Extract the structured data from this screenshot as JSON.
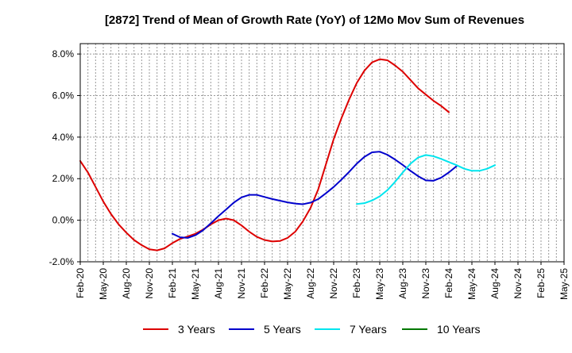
{
  "chart_data": {
    "type": "line",
    "title": "[2872]  Trend of Mean of Growth Rate (YoY) of 12Mo Mov Sum of Revenues",
    "xlabel": "",
    "ylabel": "",
    "ylim": [
      -2.0,
      8.5
    ],
    "y_ticks": [
      -2.0,
      0.0,
      2.0,
      4.0,
      6.0,
      8.0
    ],
    "y_tick_labels": [
      "-2.0%",
      "0.0%",
      "2.0%",
      "4.0%",
      "6.0%",
      "8.0%"
    ],
    "x_tick_labels": [
      "Feb-20",
      "May-20",
      "Aug-20",
      "Nov-20",
      "Feb-21",
      "May-21",
      "Aug-21",
      "Nov-21",
      "Feb-22",
      "May-22",
      "Aug-22",
      "Nov-22",
      "Feb-23",
      "May-23",
      "Aug-23",
      "Nov-23",
      "Feb-24",
      "May-24",
      "Aug-24",
      "Nov-24",
      "Feb-25",
      "May-25"
    ],
    "grid": true,
    "legend_position": "bottom",
    "series": [
      {
        "name": "3 Years",
        "color": "#dd0000",
        "start_month_index": 0,
        "values": [
          2.85,
          2.3,
          1.6,
          0.9,
          0.3,
          -0.2,
          -0.6,
          -0.95,
          -1.2,
          -1.4,
          -1.45,
          -1.35,
          -1.1,
          -0.9,
          -0.78,
          -0.65,
          -0.45,
          -0.2,
          0.0,
          0.08,
          0.0,
          -0.25,
          -0.55,
          -0.8,
          -0.95,
          -1.02,
          -1.0,
          -0.85,
          -0.55,
          -0.05,
          0.6,
          1.5,
          2.7,
          3.9,
          4.9,
          5.8,
          6.6,
          7.2,
          7.6,
          7.75,
          7.7,
          7.45,
          7.15,
          6.75,
          6.35,
          6.05,
          5.75,
          5.5,
          5.2
        ]
      },
      {
        "name": "5 Years",
        "color": "#0000cc",
        "start_month_index": 12,
        "values": [
          -0.65,
          -0.82,
          -0.85,
          -0.72,
          -0.48,
          -0.15,
          0.2,
          0.52,
          0.85,
          1.1,
          1.22,
          1.22,
          1.12,
          1.02,
          0.94,
          0.86,
          0.8,
          0.77,
          0.85,
          1.02,
          1.3,
          1.6,
          1.95,
          2.32,
          2.72,
          3.05,
          3.27,
          3.3,
          3.15,
          2.92,
          2.66,
          2.38,
          2.12,
          1.92,
          1.9,
          2.05,
          2.3,
          2.6
        ]
      },
      {
        "name": "7 Years",
        "color": "#00e5ee",
        "start_month_index": 36,
        "values": [
          0.78,
          0.82,
          0.95,
          1.15,
          1.45,
          1.85,
          2.3,
          2.72,
          3.02,
          3.14,
          3.08,
          2.95,
          2.8,
          2.65,
          2.48,
          2.38,
          2.38,
          2.48,
          2.65
        ]
      },
      {
        "name": "10 Years",
        "color": "#007700",
        "start_month_index": 0,
        "values": []
      }
    ]
  }
}
